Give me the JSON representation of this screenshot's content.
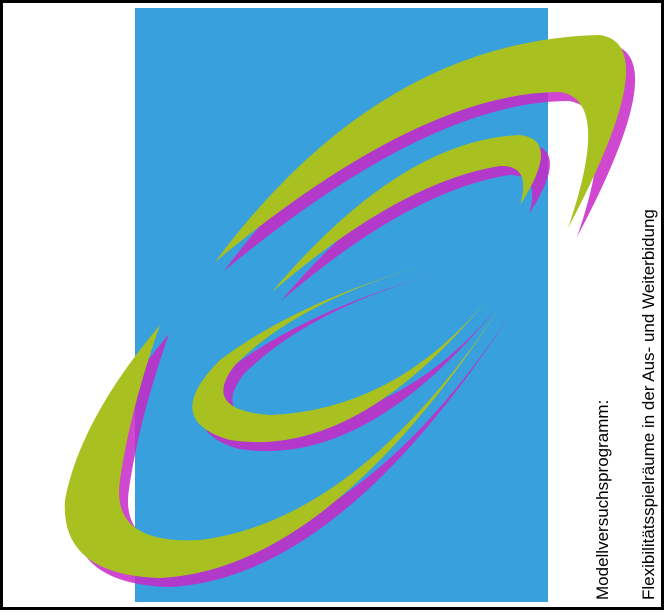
{
  "text": {
    "line1": "Modellversuchsprogramm:",
    "line2": "Flexibilitätsspielräume in der Aus- und Weiterbidung"
  }
}
